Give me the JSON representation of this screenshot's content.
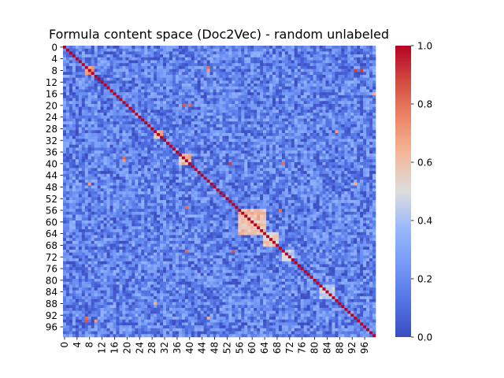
{
  "chart_data": {
    "type": "heatmap",
    "title": "Formula content space (Doc2Vec) - random unlabeled",
    "n": 100,
    "x_tick_labels": [
      "0",
      "4",
      "8",
      "12",
      "16",
      "20",
      "24",
      "28",
      "32",
      "36",
      "40",
      "44",
      "48",
      "52",
      "56",
      "60",
      "64",
      "68",
      "72",
      "76",
      "80",
      "84",
      "88",
      "92",
      "96"
    ],
    "y_tick_labels": [
      "0",
      "4",
      "8",
      "12",
      "16",
      "20",
      "24",
      "28",
      "32",
      "36",
      "40",
      "44",
      "48",
      "52",
      "56",
      "60",
      "64",
      "68",
      "72",
      "76",
      "80",
      "84",
      "88",
      "92",
      "96"
    ],
    "colorbar": {
      "colormap": "coolwarm",
      "vmin": 0.0,
      "vmax": 1.0,
      "tick_labels": [
        "0.0",
        "0.2",
        "0.4",
        "0.6",
        "0.8",
        "1.0"
      ]
    },
    "diagonal_value": 1.0,
    "typical_offdiagonal_range": [
      0.0,
      0.35
    ],
    "high_similarity_blocks": [
      {
        "rows": [
          7,
          9
        ],
        "cols": [
          7,
          9
        ],
        "value": 0.75
      },
      {
        "rows": [
          29,
          31
        ],
        "cols": [
          29,
          31
        ],
        "value": 0.65
      },
      {
        "rows": [
          37,
          40
        ],
        "cols": [
          37,
          40
        ],
        "value": 0.6
      },
      {
        "rows": [
          56,
          64
        ],
        "cols": [
          56,
          64
        ],
        "value": 0.6
      },
      {
        "rows": [
          64,
          68
        ],
        "cols": [
          64,
          68
        ],
        "value": 0.55
      },
      {
        "rows": [
          70,
          73
        ],
        "cols": [
          70,
          73
        ],
        "value": 0.45
      },
      {
        "rows": [
          82,
          86
        ],
        "cols": [
          82,
          86
        ],
        "value": 0.45
      }
    ],
    "high_similarity_pairs": [
      {
        "i": 7,
        "j": 46,
        "value": 0.8
      },
      {
        "i": 8,
        "j": 46,
        "value": 0.7
      },
      {
        "i": 8,
        "j": 93,
        "value": 0.9
      },
      {
        "i": 8,
        "j": 95,
        "value": 0.9
      },
      {
        "i": 20,
        "j": 38,
        "value": 0.85
      },
      {
        "i": 20,
        "j": 40,
        "value": 0.8
      },
      {
        "i": 29,
        "j": 87,
        "value": 0.7
      },
      {
        "i": 38,
        "j": 19,
        "value": 0.8
      },
      {
        "i": 39,
        "j": 19,
        "value": 0.7
      },
      {
        "i": 40,
        "j": 53,
        "value": 0.9
      },
      {
        "i": 40,
        "j": 70,
        "value": 0.8
      },
      {
        "i": 47,
        "j": 8,
        "value": 0.7
      },
      {
        "i": 47,
        "j": 93,
        "value": 0.65
      },
      {
        "i": 55,
        "j": 39,
        "value": 0.8
      },
      {
        "i": 56,
        "j": 69,
        "value": 0.8
      },
      {
        "i": 70,
        "j": 54,
        "value": 0.85
      },
      {
        "i": 70,
        "j": 39,
        "value": 0.8
      },
      {
        "i": 88,
        "j": 29,
        "value": 0.65
      },
      {
        "i": 93,
        "j": 7,
        "value": 0.8
      },
      {
        "i": 94,
        "j": 7,
        "value": 0.85
      },
      {
        "i": 94,
        "j": 10,
        "value": 0.7
      },
      {
        "i": 93,
        "j": 46,
        "value": 0.65
      },
      {
        "i": 16,
        "j": 99,
        "value": 0.65
      }
    ]
  }
}
